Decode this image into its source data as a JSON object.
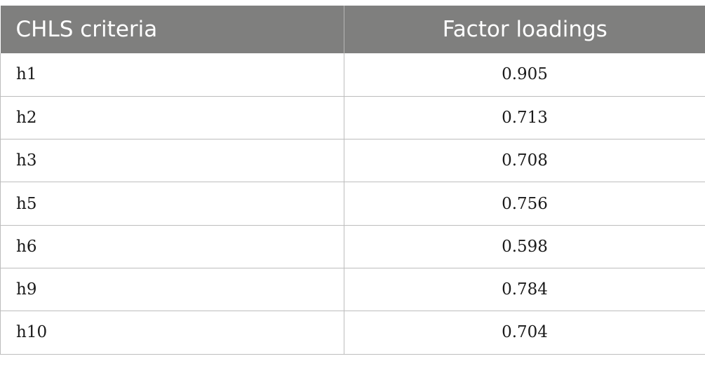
{
  "table": {
    "headers": [
      "CHLS criteria",
      "Factor loadings"
    ],
    "rows": [
      {
        "criteria": "h1",
        "loading": "0.905"
      },
      {
        "criteria": "h2",
        "loading": "0.713"
      },
      {
        "criteria": "h3",
        "loading": "0.708"
      },
      {
        "criteria": "h5",
        "loading": "0.756"
      },
      {
        "criteria": "h6",
        "loading": "0.598"
      },
      {
        "criteria": "h9",
        "loading": "0.784"
      },
      {
        "criteria": "h10",
        "loading": "0.704"
      }
    ]
  },
  "colors": {
    "header_bg": "#7f7f7e",
    "header_text": "#ffffff",
    "border": "#bdbdbd"
  }
}
